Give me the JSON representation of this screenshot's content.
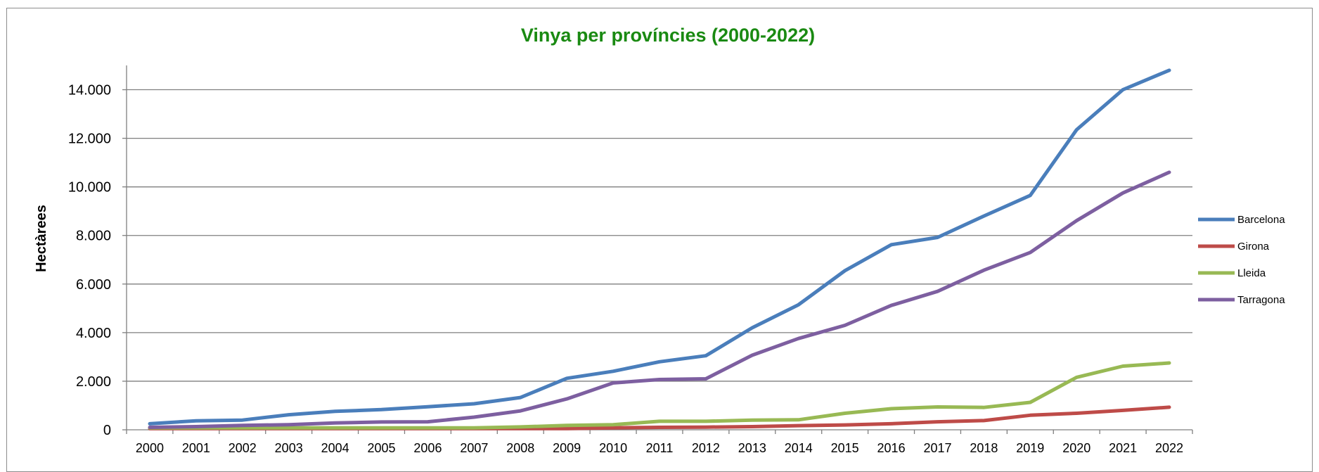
{
  "chart_data": {
    "type": "line",
    "title": "Vinya per províncies (2000-2022)",
    "xlabel": "",
    "ylabel": "Hectàrees",
    "ylim": [
      0,
      15000
    ],
    "yticks": [
      0,
      2000,
      4000,
      6000,
      8000,
      10000,
      12000,
      14000
    ],
    "ytick_labels": [
      "0",
      "2.000",
      "4.000",
      "6.000",
      "8.000",
      "10.000",
      "12.000",
      "14.000"
    ],
    "grid": "horizontal",
    "legend": "right",
    "x": [
      "2000",
      "2001",
      "2002",
      "2003",
      "2004",
      "2005",
      "2006",
      "2007",
      "2008",
      "2009",
      "2010",
      "2011",
      "2012",
      "2013",
      "2014",
      "2015",
      "2016",
      "2017",
      "2018",
      "2019",
      "2020",
      "2021",
      "2022"
    ],
    "series": [
      {
        "name": "Barcelona",
        "color": "#4a7ebb",
        "values": [
          250,
          370,
          400,
          620,
          760,
          830,
          950,
          1070,
          1330,
          2120,
          2410,
          2800,
          3050,
          4200,
          5150,
          6550,
          7620,
          7920,
          8800,
          9650,
          12350,
          14000,
          14800
        ]
      },
      {
        "name": "Girona",
        "color": "#be4b48",
        "values": [
          50,
          50,
          50,
          50,
          50,
          50,
          50,
          50,
          50,
          50,
          80,
          100,
          110,
          130,
          170,
          200,
          250,
          330,
          380,
          600,
          680,
          800,
          930
        ]
      },
      {
        "name": "Lleida",
        "color": "#98b954",
        "values": [
          80,
          80,
          80,
          80,
          80,
          80,
          80,
          80,
          120,
          180,
          210,
          350,
          350,
          400,
          410,
          680,
          870,
          940,
          920,
          1130,
          2160,
          2620,
          2750
        ]
      },
      {
        "name": "Tarragona",
        "color": "#7d5fa0",
        "values": [
          100,
          130,
          180,
          210,
          280,
          320,
          330,
          520,
          780,
          1270,
          1930,
          2070,
          2100,
          3070,
          3760,
          4300,
          5120,
          5700,
          6570,
          7300,
          8610,
          9750,
          10600
        ]
      }
    ]
  }
}
